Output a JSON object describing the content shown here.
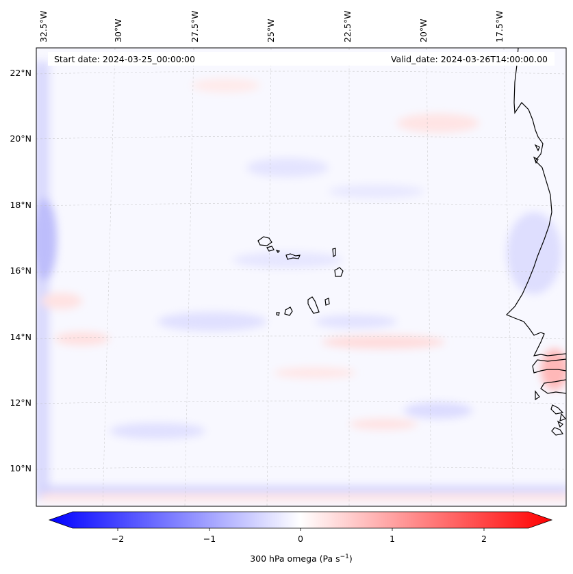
{
  "map": {
    "start_date": "Start date: 2024-03-25_00:00:00",
    "valid_date": "Valid_date: 2024-03-26T14:00:00.00",
    "lon_labels": [
      "32.5°W",
      "30°W",
      "27.5°W",
      "25°W",
      "22.5°W",
      "20°W",
      "17.5°W"
    ],
    "lat_labels": [
      "22°N",
      "20°N",
      "18°N",
      "16°N",
      "14°N",
      "12°N",
      "10°N"
    ],
    "field_colors": {
      "background": "#f8f8ff",
      "blue_light": "#e2e2ff",
      "blue_mid": "#cfcffd",
      "red_light": "#ffe6e6",
      "red_mid": "#ffcccc",
      "coast": "#000000"
    }
  },
  "colorbar": {
    "label_main": "300 hPa omega (Pa s",
    "label_exp": "−1",
    "label_close": ")",
    "ticks": [
      "−2",
      "−1",
      "0",
      "1",
      "2"
    ],
    "min_color": "#0000ff",
    "mid_color": "#ffffff",
    "max_color": "#ff0000"
  }
}
